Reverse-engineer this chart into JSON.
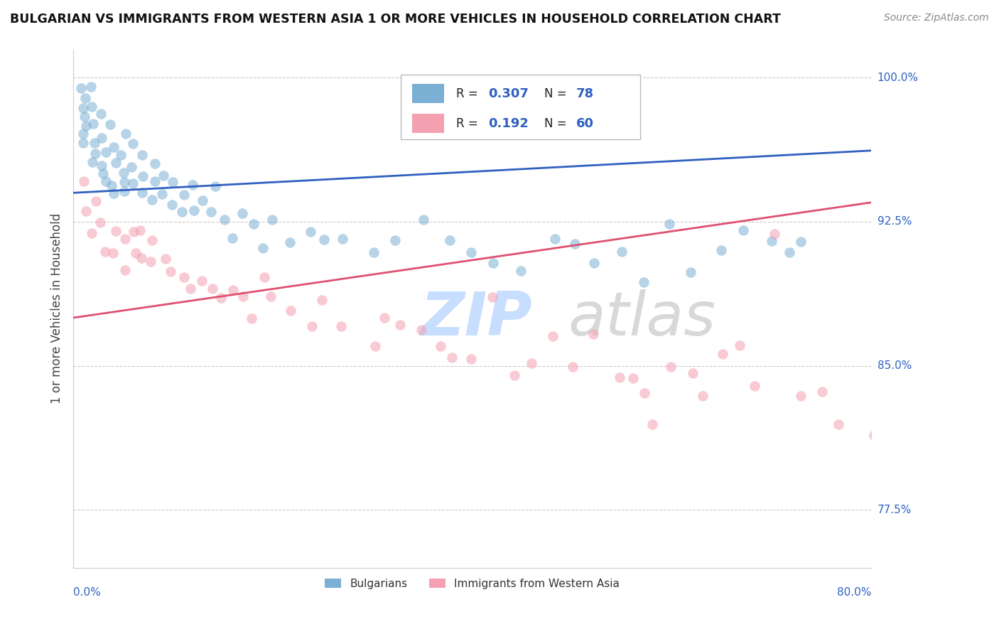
{
  "title": "BULGARIAN VS IMMIGRANTS FROM WESTERN ASIA 1 OR MORE VEHICLES IN HOUSEHOLD CORRELATION CHART",
  "source": "Source: ZipAtlas.com",
  "ylabel": "1 or more Vehicles in Household",
  "xmin": 0.0,
  "xmax": 80.0,
  "ymin": 74.5,
  "ymax": 101.5,
  "ytick_positions": [
    77.5,
    85.0,
    92.5,
    100.0
  ],
  "ytick_labels": [
    "77.5%",
    "85.0%",
    "92.5%",
    "100.0%"
  ],
  "blue_R": "0.307",
  "blue_N": "78",
  "pink_R": "0.192",
  "pink_N": "60",
  "blue_color": "#7BAFD4",
  "pink_color": "#F4A0B0",
  "blue_line_color": "#3060C0",
  "pink_line_color": "#E05070",
  "legend_label_blue": "Bulgarians",
  "legend_label_pink": "Immigrants from Western Asia",
  "blue_line_x0": 0.0,
  "blue_line_y0": 94.0,
  "blue_line_x1": 80.0,
  "blue_line_y1": 96.2,
  "pink_line_x0": 0.0,
  "pink_line_y0": 87.5,
  "pink_line_x1": 80.0,
  "pink_line_y1": 93.5,
  "blue_x": [
    1,
    1,
    1,
    1,
    1,
    1,
    1,
    2,
    2,
    2,
    2,
    2,
    2,
    3,
    3,
    3,
    3,
    3,
    3,
    4,
    4,
    4,
    4,
    4,
    5,
    5,
    5,
    5,
    5,
    6,
    6,
    6,
    7,
    7,
    7,
    8,
    8,
    8,
    9,
    9,
    10,
    10,
    11,
    11,
    12,
    12,
    13,
    14,
    14,
    15,
    16,
    17,
    18,
    19,
    20,
    22,
    24,
    25,
    27,
    30,
    32,
    35,
    38,
    40,
    42,
    45,
    48,
    50,
    52,
    55,
    57,
    60,
    62,
    65,
    67,
    70,
    72,
    73
  ],
  "blue_y": [
    99.5,
    99.0,
    98.5,
    98.0,
    97.5,
    97.0,
    96.5,
    99.5,
    98.5,
    97.5,
    96.5,
    96.0,
    95.5,
    98.0,
    97.0,
    96.0,
    95.5,
    95.0,
    94.5,
    97.5,
    96.5,
    95.5,
    94.5,
    94.0,
    97.0,
    96.0,
    95.0,
    94.5,
    94.0,
    96.5,
    95.5,
    94.5,
    96.0,
    95.0,
    94.0,
    95.5,
    94.5,
    93.5,
    95.0,
    94.0,
    94.5,
    93.5,
    94.0,
    93.0,
    94.5,
    93.0,
    93.5,
    94.5,
    93.0,
    92.5,
    91.5,
    93.0,
    92.5,
    91.0,
    92.5,
    91.5,
    92.0,
    91.5,
    91.5,
    91.0,
    91.5,
    92.5,
    91.5,
    91.0,
    90.5,
    90.0,
    91.5,
    91.5,
    90.5,
    91.0,
    89.5,
    92.5,
    90.0,
    91.0,
    92.0,
    91.5,
    91.0,
    91.5
  ],
  "pink_x": [
    1,
    1,
    2,
    2,
    3,
    3,
    4,
    4,
    5,
    5,
    6,
    6,
    7,
    7,
    8,
    8,
    9,
    10,
    11,
    12,
    13,
    14,
    15,
    16,
    17,
    18,
    19,
    20,
    22,
    24,
    25,
    27,
    30,
    31,
    33,
    35,
    37,
    38,
    40,
    42,
    44,
    46,
    48,
    50,
    52,
    55,
    56,
    57,
    58,
    60,
    62,
    63,
    65,
    67,
    68,
    70,
    73,
    75,
    77,
    80
  ],
  "pink_y": [
    94.5,
    93.0,
    93.5,
    92.0,
    92.5,
    91.0,
    92.0,
    91.0,
    91.5,
    90.0,
    92.0,
    91.0,
    92.0,
    90.5,
    91.5,
    90.5,
    90.5,
    90.0,
    89.5,
    89.0,
    89.5,
    89.0,
    88.5,
    89.0,
    88.5,
    87.5,
    89.5,
    88.5,
    88.0,
    87.0,
    88.5,
    87.0,
    86.0,
    87.5,
    87.0,
    87.0,
    86.0,
    85.5,
    85.5,
    88.5,
    84.5,
    85.0,
    86.5,
    85.0,
    86.5,
    84.5,
    84.5,
    83.5,
    82.0,
    85.0,
    84.5,
    83.5,
    85.5,
    86.0,
    84.0,
    92.0,
    83.5,
    83.5,
    82.0,
    81.5
  ]
}
